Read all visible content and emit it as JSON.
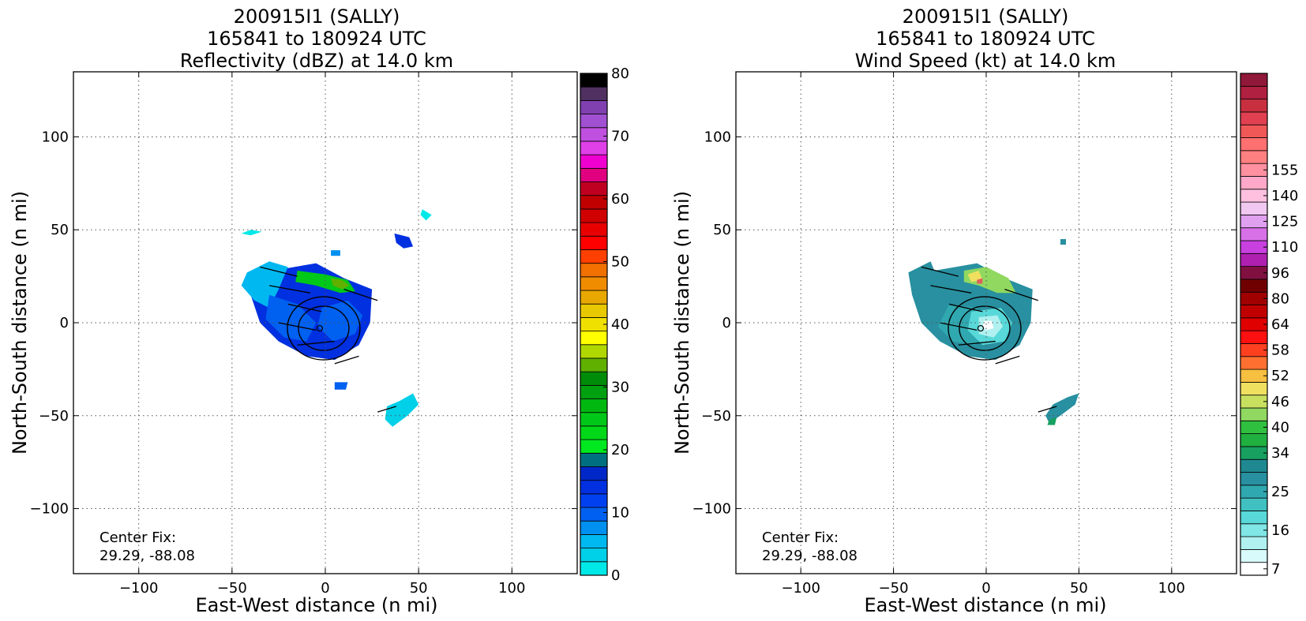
{
  "chart_data": [
    {
      "type": "heatmap",
      "title_lines": [
        "200915I1 (SALLY)",
        "165841 to 180924 UTC",
        "Reflectivity (dBZ) at 14.0 km"
      ],
      "xlabel": "East-West distance (n mi)",
      "ylabel": "North-South distance (n mi)",
      "xlim": [
        -135,
        135
      ],
      "ylim": [
        -135,
        135
      ],
      "xticks": [
        -100,
        -50,
        0,
        50,
        100
      ],
      "yticks": [
        -100,
        -50,
        0,
        50,
        100
      ],
      "grid": true,
      "annotation_lines": [
        "Center Fix:",
        "29.29, -88.08"
      ],
      "center_fix": [
        29.29,
        -88.08
      ],
      "colorbar": {
        "vmin": 0,
        "vmax": 80,
        "tick_labels": [
          "0",
          "10",
          "20",
          "30",
          "40",
          "50",
          "60",
          "70",
          "80"
        ],
        "tick_values": [
          0,
          10,
          20,
          30,
          40,
          50,
          60,
          70,
          80
        ],
        "colors": [
          "#00e8e8",
          "#00d0e8",
          "#00b8f0",
          "#0090f0",
          "#0060f0",
          "#0040f0",
          "#0030e0",
          "#0028c8",
          "#007080",
          "#00e820",
          "#00d818",
          "#00c818",
          "#00b810",
          "#00a010",
          "#008c08",
          "#60b000",
          "#b0d800",
          "#ffff00",
          "#f0e000",
          "#e8c800",
          "#e8a800",
          "#f08c00",
          "#f07000",
          "#ff4000",
          "#ff0000",
          "#e80000",
          "#d00000",
          "#c00000",
          "#c00020",
          "#e00080",
          "#f000d0",
          "#e040e8",
          "#c050e0",
          "#a050d0",
          "#8040b0",
          "#503060",
          "#000000"
        ]
      },
      "echo_regions": [
        {
          "color": "#0030e0",
          "points": [
            [
              -28,
              28
            ],
            [
              -5,
              32
            ],
            [
              10,
              24
            ],
            [
              25,
              18
            ],
            [
              24,
              0
            ],
            [
              18,
              -12
            ],
            [
              5,
              -20
            ],
            [
              -10,
              -18
            ],
            [
              -25,
              -10
            ],
            [
              -35,
              0
            ],
            [
              -40,
              15
            ]
          ]
        },
        {
          "color": "#00b8f0",
          "points": [
            [
              -42,
              27
            ],
            [
              -30,
              33
            ],
            [
              -20,
              30
            ],
            [
              -25,
              18
            ],
            [
              -30,
              8
            ],
            [
              -38,
              12
            ],
            [
              -45,
              20
            ]
          ]
        },
        {
          "color": "#0060f0",
          "points": [
            [
              -30,
              15
            ],
            [
              -15,
              10
            ],
            [
              -5,
              0
            ],
            [
              -10,
              -10
            ],
            [
              -22,
              -8
            ],
            [
              -32,
              2
            ]
          ]
        },
        {
          "color": "#0060f0",
          "points": [
            [
              -2,
              8
            ],
            [
              12,
              12
            ],
            [
              20,
              4
            ],
            [
              16,
              -6
            ],
            [
              4,
              -10
            ],
            [
              -4,
              -2
            ]
          ]
        },
        {
          "color": "#00c818",
          "points": [
            [
              -15,
              28
            ],
            [
              0,
              26
            ],
            [
              12,
              23
            ],
            [
              16,
              17
            ],
            [
              8,
              16
            ],
            [
              -5,
              20
            ],
            [
              -16,
              22
            ]
          ]
        },
        {
          "color": "#60b000",
          "points": [
            [
              3,
              24
            ],
            [
              9,
              23
            ],
            [
              13,
              20
            ],
            [
              9,
              18
            ],
            [
              4,
              20
            ]
          ]
        },
        {
          "color": "#0030e0",
          "points": [
            [
              37,
              48
            ],
            [
              45,
              46
            ],
            [
              47,
              41
            ],
            [
              42,
              40
            ],
            [
              38,
              43
            ]
          ]
        },
        {
          "color": "#00d0e8",
          "points": [
            [
              33,
              -45
            ],
            [
              40,
              -42
            ],
            [
              47,
              -38
            ],
            [
              50,
              -44
            ],
            [
              44,
              -50
            ],
            [
              36,
              -56
            ],
            [
              32,
              -52
            ]
          ]
        },
        {
          "color": "#00e8e8",
          "points": [
            [
              -45,
              48
            ],
            [
              -40,
              50
            ],
            [
              -34,
              49
            ],
            [
              -40,
              47
            ]
          ]
        },
        {
          "color": "#00e8e8",
          "points": [
            [
              52,
              61
            ],
            [
              57,
              58
            ],
            [
              54,
              55
            ],
            [
              51,
              58
            ]
          ]
        },
        {
          "color": "#0090f0",
          "points": [
            [
              3,
              39
            ],
            [
              8,
              39
            ],
            [
              8,
              36
            ],
            [
              3,
              36
            ]
          ]
        },
        {
          "color": "#0060f0",
          "points": [
            [
              5,
              -32
            ],
            [
              12,
              -32
            ],
            [
              11,
              -36
            ],
            [
              5,
              -36
            ]
          ]
        }
      ]
    },
    {
      "type": "heatmap",
      "title_lines": [
        "200915I1 (SALLY)",
        "165841 to 180924 UTC",
        "Wind Speed (kt) at 14.0 km"
      ],
      "xlabel": "East-West distance (n mi)",
      "ylabel": "North-South distance (n mi)",
      "xlim": [
        -135,
        135
      ],
      "ylim": [
        -135,
        135
      ],
      "xticks": [
        -100,
        -50,
        0,
        50,
        100
      ],
      "yticks": [
        -100,
        -50,
        0,
        50,
        100
      ],
      "grid": true,
      "annotation_lines": [
        "Center Fix:",
        "29.29, -88.08"
      ],
      "center_fix": [
        29.29,
        -88.08
      ],
      "colorbar": {
        "tick_labels": [
          "7",
          "16",
          "25",
          "34",
          "40",
          "46",
          "52",
          "58",
          "64",
          "80",
          "96",
          "110",
          "125",
          "140",
          "155"
        ],
        "tick_bins": [
          0,
          3,
          6,
          9,
          11,
          13,
          15,
          17,
          19,
          21,
          23,
          25,
          27,
          29,
          31
        ],
        "colors": [
          "#ffffff",
          "#d8fafa",
          "#b0f0f0",
          "#80e6e6",
          "#58d8d8",
          "#40c0c0",
          "#30a8b0",
          "#2890a0",
          "#208890",
          "#18a060",
          "#20b040",
          "#30c040",
          "#90d860",
          "#c8e060",
          "#f0e060",
          "#f8c040",
          "#ff7030",
          "#ff4020",
          "#ff1010",
          "#e00000",
          "#c00000",
          "#a00000",
          "#700000",
          "#801040",
          "#b020b0",
          "#c840e0",
          "#d870e8",
          "#e0a0f0",
          "#f0c8f0",
          "#ffc0e0",
          "#ffa8c8",
          "#ff90a0",
          "#ff8080",
          "#ff7070",
          "#f05858",
          "#e04050",
          "#c83040",
          "#b02040",
          "#901838"
        ]
      },
      "wind_regions": [
        {
          "color": "#2890a0",
          "points": [
            [
              -28,
              28
            ],
            [
              -5,
              32
            ],
            [
              10,
              24
            ],
            [
              25,
              18
            ],
            [
              24,
              0
            ],
            [
              18,
              -12
            ],
            [
              5,
              -20
            ],
            [
              -10,
              -18
            ],
            [
              -25,
              -10
            ],
            [
              -35,
              0
            ],
            [
              -40,
              15
            ],
            [
              -42,
              27
            ],
            [
              -30,
              33
            ]
          ]
        },
        {
          "color": "#30a8b0",
          "points": [
            [
              -20,
              10
            ],
            [
              -5,
              8
            ],
            [
              0,
              -2
            ],
            [
              -6,
              -12
            ],
            [
              -18,
              -10
            ],
            [
              -26,
              -2
            ]
          ]
        },
        {
          "color": "#58d8d8",
          "points": [
            [
              -8,
              6
            ],
            [
              8,
              8
            ],
            [
              14,
              0
            ],
            [
              10,
              -10
            ],
            [
              -2,
              -12
            ],
            [
              -10,
              -4
            ]
          ]
        },
        {
          "color": "#b0f0f0",
          "points": [
            [
              -4,
              3
            ],
            [
              6,
              4
            ],
            [
              9,
              -2
            ],
            [
              4,
              -8
            ],
            [
              -4,
              -6
            ]
          ]
        },
        {
          "color": "#ffffff",
          "points": [
            [
              -1,
              1
            ],
            [
              3,
              1
            ],
            [
              4,
              -3
            ],
            [
              0,
              -4
            ],
            [
              -2,
              -2
            ]
          ]
        },
        {
          "color": "#90d860",
          "points": [
            [
              -12,
              28
            ],
            [
              0,
              30
            ],
            [
              12,
              24
            ],
            [
              16,
              16
            ],
            [
              6,
              16
            ],
            [
              -4,
              20
            ],
            [
              -12,
              22
            ]
          ]
        },
        {
          "color": "#f0e060",
          "points": [
            [
              -10,
              26
            ],
            [
              -4,
              28
            ],
            [
              -2,
              23
            ],
            [
              -8,
              22
            ]
          ]
        },
        {
          "color": "#e06060",
          "points": [
            [
              -5,
              23
            ],
            [
              -2,
              24
            ],
            [
              -2,
              21
            ],
            [
              -5,
              21
            ]
          ]
        },
        {
          "color": "#2890a0",
          "points": [
            [
              40,
              45
            ],
            [
              43,
              45
            ],
            [
              43,
              42
            ],
            [
              40,
              42
            ]
          ]
        },
        {
          "color": "#2890a0",
          "points": [
            [
              36,
              -44
            ],
            [
              44,
              -40
            ],
            [
              50,
              -38
            ],
            [
              48,
              -44
            ],
            [
              40,
              -50
            ],
            [
              34,
              -54
            ],
            [
              32,
              -50
            ]
          ]
        },
        {
          "color": "#18a060",
          "points": [
            [
              34,
              -52
            ],
            [
              38,
              -51
            ],
            [
              37,
              -55
            ],
            [
              33,
              -55
            ]
          ]
        }
      ]
    }
  ]
}
